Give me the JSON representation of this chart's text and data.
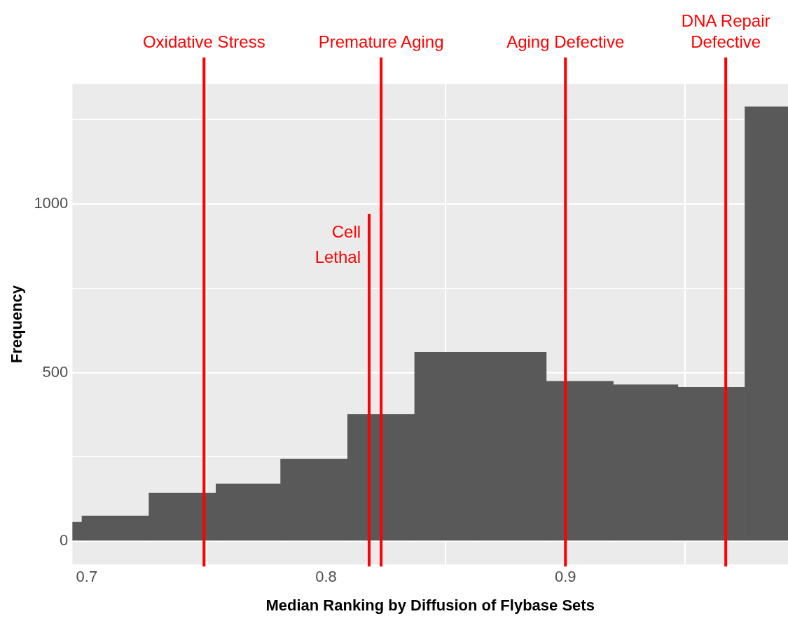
{
  "chart_data": {
    "type": "histogram",
    "xlabel": "Median Ranking by Diffusion of Flybase Sets",
    "ylabel": "Frequency",
    "bins": [
      0.694,
      0.698,
      0.726,
      0.754,
      0.781,
      0.809,
      0.837,
      0.864,
      0.892,
      0.92,
      0.947,
      0.975,
      0.993
    ],
    "values": [
      56,
      75,
      143,
      170,
      243,
      376,
      561,
      561,
      474,
      464,
      457,
      1289
    ],
    "color": "#595959",
    "xlim": [
      0.694,
      0.993
    ],
    "xticks": [
      0.7,
      0.8,
      0.9
    ],
    "ylim": [
      -69,
      1356
    ],
    "yticks": [
      0,
      {
        "value": 250,
        "label": null
      },
      500,
      {
        "value": 750,
        "label": null
      },
      1000,
      {
        "value": 1250,
        "label": null
      }
    ],
    "grid": true,
    "legend": false,
    "ref_lines": [
      {
        "axis": "x",
        "value": 0.749,
        "label": "Oxidative Stress",
        "color": "#ff0000"
      },
      {
        "axis": "x",
        "value": 0.818,
        "label": "Cell\nLethal",
        "color": "#ff0000"
      },
      {
        "axis": "x",
        "value": 0.823,
        "label": "Premature Aging",
        "color": "#ff0000"
      },
      {
        "axis": "x",
        "value": 0.9,
        "label": "Aging Defective",
        "color": "#ff0000"
      },
      {
        "axis": "x",
        "value": 0.967,
        "label": "DNA Repair\nDefective",
        "color": "#ff0000"
      }
    ]
  }
}
